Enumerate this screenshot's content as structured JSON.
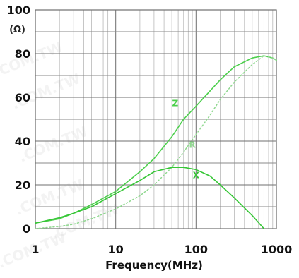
{
  "chart_data": {
    "type": "line",
    "title": "",
    "xlabel": "Frequency(MHz)",
    "ylabel": "(Ω)",
    "x_scale": "log",
    "xlim": [
      1,
      1000
    ],
    "ylim": [
      0,
      100
    ],
    "grid": true,
    "x_ticks": [
      1,
      10,
      100,
      1000
    ],
    "x_tick_labels": [
      "1",
      "10",
      "100",
      "1000"
    ],
    "y_ticks": [
      0,
      20,
      40,
      60,
      80,
      100
    ],
    "y_tick_labels": [
      "0",
      "20",
      "40",
      "60",
      "80",
      "100"
    ],
    "legend": "inline",
    "watermark": ".COM.TW",
    "series": [
      {
        "name": "Z",
        "color": "#4ccf4c",
        "style": "solid",
        "points": [
          [
            1,
            2.5
          ],
          [
            2,
            4.5
          ],
          [
            3,
            7
          ],
          [
            5,
            11
          ],
          [
            10,
            17
          ],
          [
            20,
            26
          ],
          [
            30,
            32
          ],
          [
            50,
            42
          ],
          [
            70,
            50
          ],
          [
            100,
            56
          ],
          [
            150,
            63
          ],
          [
            200,
            68
          ],
          [
            300,
            74
          ],
          [
            500,
            78
          ],
          [
            700,
            79
          ],
          [
            900,
            78
          ],
          [
            1000,
            77
          ]
        ]
      },
      {
        "name": "R",
        "color": "#90d890",
        "style": "dotted",
        "points": [
          [
            1,
            0
          ],
          [
            2,
            1
          ],
          [
            3,
            2
          ],
          [
            5,
            4.5
          ],
          [
            10,
            9
          ],
          [
            20,
            15
          ],
          [
            30,
            20
          ],
          [
            50,
            28
          ],
          [
            70,
            35
          ],
          [
            100,
            43
          ],
          [
            150,
            52
          ],
          [
            200,
            59
          ],
          [
            300,
            67
          ],
          [
            500,
            75
          ],
          [
            700,
            79
          ],
          [
            900,
            78
          ],
          [
            1000,
            77
          ]
        ]
      },
      {
        "name": "X",
        "color": "#36c636",
        "style": "solid",
        "points": [
          [
            1,
            2.5
          ],
          [
            2,
            5
          ],
          [
            3,
            7
          ],
          [
            5,
            10
          ],
          [
            10,
            16
          ],
          [
            20,
            22
          ],
          [
            30,
            26
          ],
          [
            50,
            28
          ],
          [
            70,
            28
          ],
          [
            100,
            27
          ],
          [
            150,
            24
          ],
          [
            200,
            20
          ],
          [
            300,
            14
          ],
          [
            500,
            6
          ],
          [
            700,
            0
          ]
        ]
      }
    ],
    "annotations": [
      {
        "text": "Z",
        "x": 55,
        "y": 56
      },
      {
        "text": "R",
        "x": 90,
        "y": 37
      },
      {
        "text": "X",
        "x": 100,
        "y": 23
      }
    ]
  }
}
